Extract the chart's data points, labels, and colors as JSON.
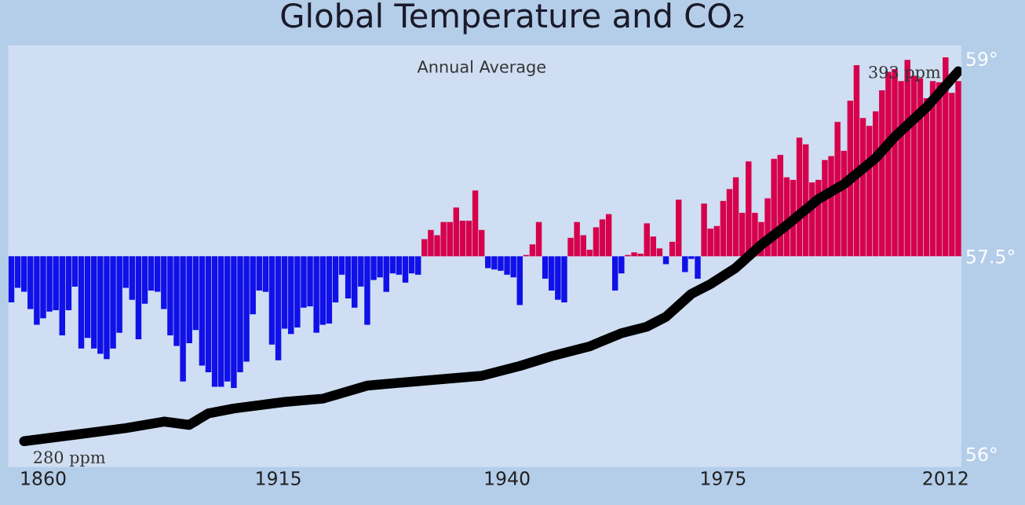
{
  "chart_data": {
    "type": "bar",
    "title": "Global Temperature and CO₂",
    "subtitle": "Annual Average",
    "categories": [
      null,
      null,
      null,
      null,
      null,
      "1860",
      null,
      null,
      null,
      null,
      null,
      null,
      null,
      null,
      null,
      null,
      null,
      null,
      null,
      null,
      null,
      null,
      null,
      null,
      null,
      null,
      null,
      null,
      null,
      null,
      null,
      null,
      null,
      null,
      null,
      null,
      null,
      null,
      null,
      null,
      null,
      null,
      "1915",
      null,
      null,
      null,
      null,
      null,
      null,
      null,
      null,
      null,
      null,
      null,
      null,
      null,
      null,
      null,
      null,
      null,
      null,
      null,
      null,
      null,
      null,
      null,
      null,
      null,
      null,
      null,
      null,
      null,
      null,
      null,
      null,
      null,
      null,
      null,
      "1940",
      null,
      null,
      null,
      null,
      null,
      null,
      null,
      null,
      null,
      null,
      null,
      null,
      null,
      null,
      null,
      null,
      null,
      null,
      null,
      null,
      null,
      null,
      null,
      null,
      null,
      null,
      null,
      null,
      null,
      null,
      null,
      null,
      null,
      "1975",
      null,
      null,
      null,
      null,
      null,
      null,
      null,
      null,
      null,
      null,
      null,
      null,
      null,
      null,
      null,
      null,
      null,
      null,
      null,
      null,
      null,
      null,
      null,
      null,
      null,
      null,
      null,
      null,
      null,
      null,
      null,
      null,
      null,
      null,
      "2012",
      null,
      null
    ],
    "series": [
      {
        "values": [
          -0.35,
          -0.24,
          -0.27,
          -0.4,
          -0.52,
          -0.47,
          -0.42,
          -0.41,
          -0.6,
          -0.41,
          -0.23,
          -0.7,
          -0.62,
          -0.7,
          -0.74,
          -0.78,
          -0.7,
          -0.58,
          -0.24,
          -0.33,
          -0.63,
          -0.36,
          -0.26,
          -0.27,
          -0.4,
          -0.6,
          -0.68,
          -0.95,
          -0.66,
          -0.56,
          -0.83,
          -0.88,
          -0.99,
          -0.99,
          -0.95,
          -1.0,
          -0.88,
          -0.8,
          -0.44,
          -0.26,
          -0.27,
          -0.67,
          -0.79,
          -0.55,
          -0.59,
          -0.54,
          -0.39,
          -0.38,
          -0.58,
          -0.52,
          -0.51,
          -0.35,
          -0.14,
          -0.32,
          -0.39,
          -0.23,
          -0.52,
          -0.18,
          -0.16,
          -0.27,
          -0.13,
          -0.14,
          -0.2,
          -0.13,
          -0.14,
          0.13,
          0.2,
          0.16,
          0.26,
          0.26,
          0.37,
          0.27,
          0.27,
          0.5,
          0.2,
          -0.09,
          -0.1,
          -0.11,
          -0.14,
          -0.16,
          -0.37,
          0.01,
          0.09,
          0.26,
          -0.17,
          -0.26,
          -0.33,
          -0.35,
          0.14,
          0.26,
          0.16,
          0.05,
          0.22,
          0.28,
          0.32,
          -0.26,
          -0.13,
          0.01,
          0.03,
          0.02,
          0.25,
          0.15,
          0.06,
          -0.06,
          0.11,
          0.43,
          -0.12,
          -0.02,
          -0.17,
          0.4,
          0.21,
          0.23,
          0.42,
          0.51,
          0.6,
          0.33,
          0.72,
          0.33,
          0.26,
          0.44,
          0.74,
          0.77,
          0.6,
          0.58,
          0.9,
          0.85,
          0.56,
          0.58,
          0.73,
          0.76,
          1.02,
          0.8,
          1.18,
          1.45,
          1.05,
          0.99,
          1.1,
          1.26,
          1.4,
          1.42,
          1.33,
          1.49,
          1.37,
          1.35,
          1.2,
          1.33,
          1.32,
          1.51,
          1.24,
          1.33
        ],
        "base": [
          57.5,
          57.5,
          57.5,
          57.5,
          57.5,
          57.5,
          57.5,
          57.5,
          57.5,
          57.5,
          57.5,
          57.5,
          57.5,
          57.5,
          57.5,
          57.5,
          57.5,
          57.5,
          57.5,
          57.5,
          57.5,
          57.5,
          57.5,
          57.5,
          57.5,
          57.5,
          57.5,
          57.5,
          57.5,
          57.5,
          57.5,
          57.5,
          57.5,
          57.5,
          57.5,
          57.5,
          57.5,
          57.5,
          57.5,
          57.5,
          57.5,
          57.5,
          57.5,
          57.5,
          57.5,
          57.5,
          57.5,
          57.5,
          57.5,
          57.5,
          57.5,
          57.5,
          57.5,
          57.5,
          57.5,
          57.5,
          57.5,
          57.5,
          57.5,
          57.5,
          57.5,
          57.5,
          57.5,
          57.5,
          57.5,
          57.5,
          57.5,
          57.5,
          57.5,
          57.5,
          57.5,
          57.5,
          57.5,
          57.5,
          57.5,
          57.5,
          57.5,
          57.5,
          57.5,
          57.5,
          57.5,
          57.5,
          57.5,
          57.5,
          57.5,
          57.5,
          57.5,
          57.5,
          57.5,
          57.5,
          57.5,
          57.5,
          57.5,
          57.5,
          57.5,
          57.5,
          57.5,
          57.5,
          57.5,
          57.5,
          57.5,
          57.5,
          57.5,
          57.5,
          57.5,
          57.5,
          57.5,
          57.5,
          57.5,
          57.5,
          57.5,
          57.5,
          57.5,
          57.5,
          57.5,
          57.5,
          57.5,
          57.5,
          57.5,
          57.5,
          57.5,
          57.5,
          57.5,
          57.5,
          57.5,
          57.5,
          57.5,
          57.5,
          57.5,
          57.5,
          57.5,
          57.5,
          57.5,
          57.5,
          57.5,
          57.5,
          57.5,
          57.5,
          57.5,
          57.5,
          57.5,
          57.5,
          57.5,
          57.5,
          57.5,
          57.5,
          57.5,
          57.5,
          57.5,
          57.5
        ],
        "colors": [
          "#1010e8",
          "#1010e8",
          "#1010e8",
          "#1010e8",
          "#1010e8",
          "#1010e8",
          "#1010e8",
          "#1010e8",
          "#1010e8",
          "#1010e8",
          "#1010e8",
          "#1010e8",
          "#1010e8",
          "#1010e8",
          "#1010e8",
          "#1010e8",
          "#1010e8",
          "#1010e8",
          "#1010e8",
          "#1010e8",
          "#1010e8",
          "#1010e8",
          "#1010e8",
          "#1010e8",
          "#1010e8",
          "#1010e8",
          "#1010e8",
          "#1010e8",
          "#1010e8",
          "#1010e8",
          "#1010e8",
          "#1010e8",
          "#1010e8",
          "#1010e8",
          "#1010e8",
          "#1010e8",
          "#1010e8",
          "#1010e8",
          "#1010e8",
          "#1010e8",
          "#1010e8",
          "#1010e8",
          "#1010e8",
          "#1010e8",
          "#1010e8",
          "#1010e8",
          "#1010e8",
          "#1010e8",
          "#1010e8",
          "#1010e8",
          "#1010e8",
          "#1010e8",
          "#1010e8",
          "#1010e8",
          "#1010e8",
          "#1010e8",
          "#1010e8",
          "#1010e8",
          "#1010e8",
          "#1010e8",
          "#1010e8",
          "#1010e8",
          "#1010e8",
          "#1010e8",
          "#1010e8",
          "#d6004c",
          "#d6004c",
          "#d6004c",
          "#d6004c",
          "#d6004c",
          "#d6004c",
          "#d6004c",
          "#d6004c",
          "#d6004c",
          "#d6004c",
          "#1010e8",
          "#1010e8",
          "#1010e8",
          "#1010e8",
          "#1010e8",
          "#1010e8",
          "#d6004c",
          "#d6004c",
          "#d6004c",
          "#1010e8",
          "#1010e8",
          "#1010e8",
          "#1010e8",
          "#d6004c",
          "#d6004c",
          "#d6004c",
          "#d6004c",
          "#d6004c",
          "#d6004c",
          "#d6004c",
          "#1010e8",
          "#1010e8",
          "#d6004c",
          "#d6004c",
          "#d6004c",
          "#d6004c",
          "#d6004c",
          "#d6004c",
          "#1010e8",
          "#d6004c",
          "#d6004c",
          "#1010e8",
          "#1010e8",
          "#1010e8",
          "#d6004c",
          "#d6004c",
          "#d6004c",
          "#d6004c",
          "#d6004c",
          "#d6004c",
          "#d6004c",
          "#d6004c",
          "#d6004c",
          "#d6004c",
          "#d6004c",
          "#d6004c",
          "#d6004c",
          "#d6004c",
          "#d6004c",
          "#d6004c",
          "#d6004c",
          "#d6004c",
          "#d6004c",
          "#d6004c",
          "#d6004c",
          "#d6004c",
          "#d6004c",
          "#d6004c",
          "#d6004c",
          "#d6004c",
          "#d6004c",
          "#d6004c",
          "#d6004c",
          "#d6004c",
          "#d6004c",
          "#d6004c",
          "#d6004c",
          "#d6004c",
          "#d6004c",
          "#d6004c",
          "#d6004c",
          "#d6004c",
          "#d6004c",
          "#d6004c",
          "#d6004c"
        ]
      },
      {
        "type": "line",
        "axis": "y2",
        "color": "#000000",
        "values": [
          null,
          null,
          280,
          null,
          null,
          null,
          null,
          null,
          null,
          null,
          282,
          null,
          null,
          null,
          null,
          null,
          null,
          null,
          284,
          null,
          null,
          null,
          null,
          null,
          286,
          null,
          null,
          null,
          285,
          null,
          null,
          288.5,
          null,
          null,
          null,
          290,
          null,
          null,
          null,
          null,
          null,
          null,
          null,
          292,
          null,
          null,
          null,
          null,
          null,
          293,
          null,
          null,
          null,
          null,
          null,
          null,
          297,
          null,
          null,
          null,
          null,
          null,
          298,
          null,
          null,
          null,
          null,
          null,
          null,
          null,
          null,
          null,
          null,
          null,
          300,
          null,
          null,
          null,
          null,
          null,
          303,
          null,
          null,
          null,
          null,
          306,
          null,
          null,
          null,
          null,
          null,
          309,
          null,
          null,
          null,
          null,
          313,
          null,
          null,
          null,
          315,
          null,
          null,
          318,
          null,
          null,
          null,
          325,
          null,
          null,
          328,
          null,
          null,
          null,
          333,
          null,
          null,
          null,
          340,
          null,
          null,
          null,
          346,
          null,
          null,
          null,
          null,
          354,
          null,
          null,
          null,
          358.5,
          null,
          null,
          null,
          null,
          366.5,
          null,
          null,
          373,
          null,
          null,
          null,
          null,
          382,
          null,
          null,
          null,
          null,
          393
        ],
        "value_labels": [
          null,
          null,
          "280 ppm",
          null,
          null,
          null,
          null,
          null,
          null,
          null,
          null,
          null,
          null,
          null,
          null,
          null,
          null,
          null,
          null,
          null,
          null,
          null,
          null,
          null,
          null,
          null,
          null,
          null,
          null,
          null,
          null,
          null,
          null,
          null,
          null,
          null,
          null,
          null,
          null,
          null,
          null,
          null,
          null,
          null,
          null,
          null,
          null,
          null,
          null,
          null,
          null,
          null,
          null,
          null,
          null,
          null,
          null,
          null,
          null,
          null,
          null,
          null,
          null,
          null,
          null,
          null,
          null,
          null,
          null,
          null,
          null,
          null,
          null,
          null,
          null,
          null,
          null,
          null,
          null,
          null,
          null,
          null,
          null,
          null,
          null,
          null,
          null,
          null,
          null,
          null,
          null,
          null,
          null,
          null,
          null,
          null,
          null,
          null,
          null,
          null,
          null,
          null,
          null,
          null,
          null,
          null,
          null,
          null,
          null,
          null,
          null,
          null,
          null,
          null,
          null,
          null,
          null,
          null,
          null,
          null,
          null,
          null,
          null,
          null,
          null,
          null,
          null,
          null,
          null,
          null,
          null,
          null,
          null,
          null,
          null,
          null,
          null,
          null,
          null,
          null,
          null,
          null,
          null,
          null,
          null,
          null,
          null,
          null,
          null,
          "393 ppm"
        ]
      }
    ],
    "ylim": [
      55.9,
      59.1
    ],
    "yticks": [
      {
        "value": 56,
        "label": "56°"
      },
      {
        "value": 57.5,
        "label": "57.5°"
      },
      {
        "value": 59,
        "label": "59°"
      }
    ],
    "tick_labels": "xy"
  }
}
